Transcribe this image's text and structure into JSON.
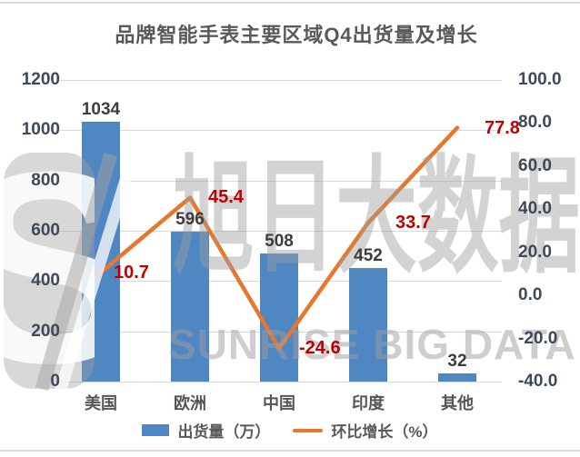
{
  "title": "品牌智能手表主要区域Q4出货量及增长",
  "watermark": {
    "logo_letter": "S",
    "cn_text": "旭日大数据",
    "en_text": "SUNRISE BIG DATA"
  },
  "chart_data": {
    "type": "combo-bar-line",
    "title": "品牌智能手表主要区域Q4出货量及增长",
    "categories": [
      "美国",
      "欧洲",
      "中国",
      "印度",
      "其他"
    ],
    "series": [
      {
        "name": "出货量（万）",
        "type": "bar",
        "axis": "left",
        "color": "#4f87c3",
        "values": [
          1034,
          596,
          508,
          452,
          32
        ],
        "labels": [
          "1034",
          "596",
          "508",
          "452",
          "32"
        ]
      },
      {
        "name": "环比增长（%）",
        "type": "line",
        "axis": "right",
        "color": "#e8772e",
        "values": [
          10.7,
          45.4,
          -24.6,
          33.7,
          77.8
        ],
        "labels": [
          "10.7",
          "45.4",
          "-24.6",
          "33.7",
          "77.8"
        ]
      }
    ],
    "left_axis": {
      "min": 0,
      "max": 1200,
      "step": 200,
      "ticks": [
        "1200",
        "1000",
        "800",
        "600",
        "400",
        "200",
        "0"
      ]
    },
    "right_axis": {
      "min": -40,
      "max": 100,
      "step": 20,
      "ticks": [
        "100.0",
        "80.0",
        "60.0",
        "40.0",
        "20.0",
        "0.0",
        "-20.0",
        "-40.0"
      ]
    },
    "grid": true,
    "legend_position": "bottom"
  },
  "colors": {
    "bar": "#4f87c3",
    "line": "#e8772e",
    "line_label": "#c00000",
    "bar_label": "#3d3d3d",
    "axis_text": "#3f4859",
    "category_text": "#555555",
    "title_text": "#595959",
    "grid": "#d9d9d9",
    "page_rule": "#dcdcdc",
    "watermark": "#a2a2a2"
  }
}
